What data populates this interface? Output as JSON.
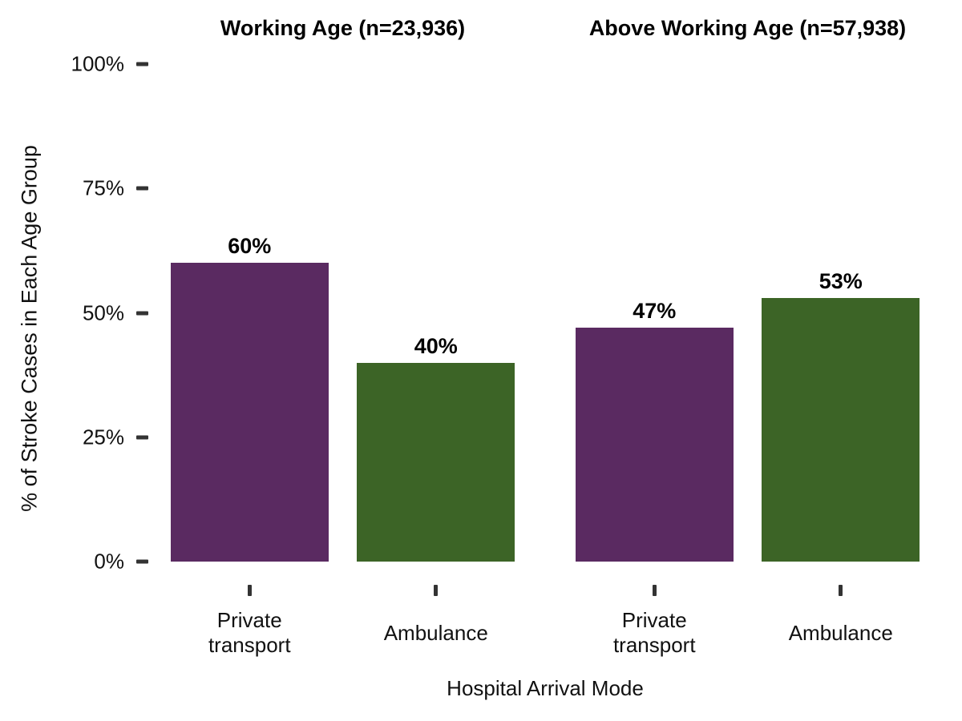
{
  "chart_data": {
    "type": "bar",
    "xlabel": "Hospital Arrival Mode",
    "ylabel": "% of Stroke Cases in Each Age Group",
    "ylim": [
      0,
      100
    ],
    "yticks": [
      0,
      25,
      50,
      75,
      100
    ],
    "ytick_labels": [
      "0%",
      "25%",
      "50%",
      "75%",
      "100%"
    ],
    "grid": false,
    "legend": "none",
    "categories": [
      "Private transport",
      "Ambulance"
    ],
    "facets": [
      {
        "title": "Working Age (n=23,936)",
        "bars": [
          {
            "category": "Private transport",
            "value": 60,
            "label": "60%",
            "color": "#5A2A61"
          },
          {
            "category": "Ambulance",
            "value": 40,
            "label": "40%",
            "color": "#3C6426"
          }
        ]
      },
      {
        "title": "Above Working Age (n=57,938)",
        "bars": [
          {
            "category": "Private transport",
            "value": 47,
            "label": "47%",
            "color": "#5A2A61"
          },
          {
            "category": "Ambulance",
            "value": 53,
            "label": "53%",
            "color": "#3C6426"
          }
        ]
      }
    ]
  },
  "style": {
    "bar_purple": "#5A2A61",
    "bar_green": "#3C6426",
    "tick_mark_color": "#333333",
    "text_color": "#111111",
    "background": "#ffffff"
  }
}
